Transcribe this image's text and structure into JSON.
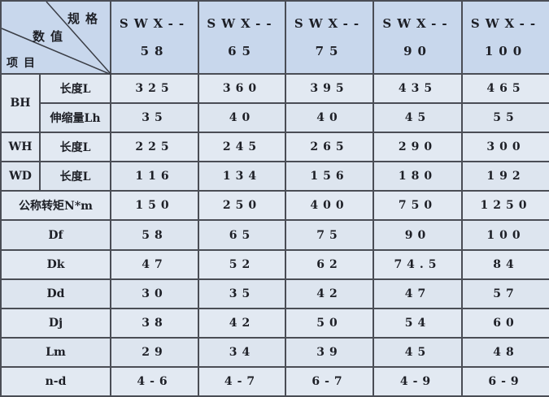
{
  "corner": {
    "spec": "规格",
    "value": "数值",
    "item": "项目"
  },
  "models": [
    {
      "line1": "SWX--",
      "line2": "58"
    },
    {
      "line1": "SWX--",
      "line2": "65"
    },
    {
      "line1": "SWX--",
      "line2": "75"
    },
    {
      "line1": "SWX--",
      "line2": "90"
    },
    {
      "line1": "SWX--",
      "line2": "100"
    }
  ],
  "groups": {
    "bh": "BH",
    "wh": "WH",
    "wd": "WD"
  },
  "rows": [
    {
      "label": "长度L",
      "values": [
        "325",
        "360",
        "395",
        "435",
        "465"
      ]
    },
    {
      "label": "伸缩量Lh",
      "values": [
        "35",
        "40",
        "40",
        "45",
        "55"
      ]
    },
    {
      "label": "长度L",
      "values": [
        "225",
        "245",
        "265",
        "290",
        "300"
      ]
    },
    {
      "label": "长度L",
      "values": [
        "116",
        "134",
        "156",
        "180",
        "192"
      ]
    },
    {
      "label": "公称转矩N*m",
      "values": [
        "150",
        "250",
        "400",
        "750",
        "1250"
      ]
    },
    {
      "label": "Df",
      "values": [
        "58",
        "65",
        "75",
        "90",
        "100"
      ]
    },
    {
      "label": "Dk",
      "values": [
        "47",
        "52",
        "62",
        "74.5",
        "84"
      ]
    },
    {
      "label": "Dd",
      "values": [
        "30",
        "35",
        "42",
        "47",
        "57"
      ]
    },
    {
      "label": "Dj",
      "values": [
        "38",
        "42",
        "50",
        "54",
        "60"
      ]
    },
    {
      "label": "Lm",
      "values": [
        "29",
        "34",
        "39",
        "45",
        "48"
      ]
    },
    {
      "label": "n-d",
      "values": [
        "4-6",
        "4-7",
        "6-7",
        "4-9",
        "6-9"
      ]
    }
  ]
}
